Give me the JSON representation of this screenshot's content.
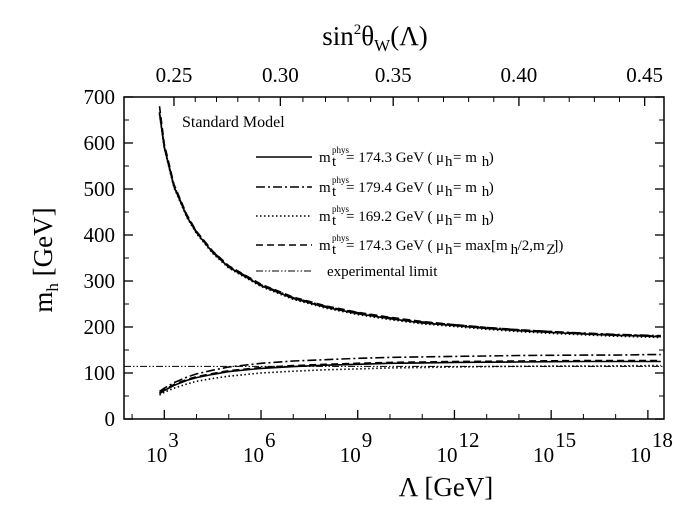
{
  "chart_data": {
    "type": "line",
    "title": "Standard Model",
    "xlabel": "Λ [GeV]",
    "ylabel": "m_h [GeV]",
    "top_xlabel": "sin²θ_W(Λ)",
    "xscale": "log10",
    "xlim_log10": [
      1.75,
      18.5
    ],
    "ylim": [
      0,
      700
    ],
    "x_ticks_log10": [
      3,
      6,
      9,
      12,
      15,
      18
    ],
    "x_tick_labels": [
      {
        "base": "10",
        "exp": "3"
      },
      {
        "base": "10",
        "exp": "6"
      },
      {
        "base": "10",
        "exp": "9"
      },
      {
        "base": "10",
        "exp": "12"
      },
      {
        "base": "10",
        "exp": "15"
      },
      {
        "base": "10",
        "exp": "18"
      }
    ],
    "y_ticks": [
      0,
      100,
      200,
      300,
      400,
      500,
      600,
      700
    ],
    "y_tick_labels": [
      "0",
      "100",
      "200",
      "300",
      "400",
      "500",
      "600",
      "700"
    ],
    "top_ticks": [
      {
        "label": "0.25",
        "log10_lambda": 3.3
      },
      {
        "label": "0.30",
        "log10_lambda": 6.6
      },
      {
        "label": "0.35",
        "log10_lambda": 10.1
      },
      {
        "label": "0.40",
        "log10_lambda": 14.0
      },
      {
        "label": "0.45",
        "log10_lambda": 17.9
      }
    ],
    "series": [
      {
        "name": "m_t^phys = 174.3 GeV (μ_h = m_h)",
        "legend": {
          "label": "= 174.3 GeV (",
          "cond": " = m",
          "close": ")",
          "max": ""
        },
        "dash": "solid",
        "upper": {
          "log10_lambda": [
            2.85,
            3,
            3.3,
            3.7,
            4,
            4.5,
            5,
            6,
            7,
            8,
            9,
            10,
            11,
            12,
            13,
            14,
            15,
            16,
            17,
            18,
            18.4
          ],
          "m_h": [
            665,
            590,
            505,
            440,
            405,
            362,
            330,
            290,
            262,
            243,
            229,
            218,
            209,
            203,
            197,
            192,
            188,
            185,
            182,
            180,
            179
          ]
        },
        "lower": {
          "log10_lambda": [
            2.85,
            3,
            3.3,
            3.7,
            4,
            4.5,
            5,
            6,
            7,
            8,
            9,
            10,
            11,
            12,
            13,
            14,
            15,
            16,
            17,
            18,
            18.4
          ],
          "m_h": [
            55,
            62,
            73,
            84,
            90,
            97,
            103,
            110,
            114,
            117,
            119,
            121,
            122,
            123,
            123.5,
            124,
            124.5,
            125,
            125,
            125,
            125
          ]
        }
      },
      {
        "name": "m_t^phys = 179.4 GeV (μ_h = m_h)",
        "legend": {
          "label": "= 179.4 GeV (",
          "cond": " = m",
          "close": ")",
          "max": ""
        },
        "dash": "dashdot",
        "upper": {
          "log10_lambda": [
            2.85,
            3,
            3.3,
            3.7,
            4,
            4.5,
            5,
            6,
            7,
            8,
            9,
            10,
            11,
            12,
            13,
            14,
            15,
            16,
            17,
            18,
            18.4
          ],
          "m_h": [
            667,
            592,
            507,
            442,
            407,
            364,
            332,
            292,
            264,
            245,
            231,
            220,
            211,
            205,
            199,
            194,
            190,
            187,
            184,
            182,
            181
          ]
        },
        "lower": {
          "log10_lambda": [
            2.85,
            3,
            3.3,
            3.7,
            4,
            4.5,
            5,
            6,
            7,
            8,
            9,
            10,
            11,
            12,
            13,
            14,
            15,
            16,
            17,
            18,
            18.4
          ],
          "m_h": [
            60,
            67,
            79,
            91,
            98,
            106,
            113,
            121,
            126,
            129,
            132,
            134,
            135,
            136,
            137,
            138,
            138.5,
            139,
            139,
            140,
            140
          ]
        }
      },
      {
        "name": "m_t^phys = 169.2 GeV (μ_h = m_h)",
        "legend": {
          "label": "= 169.2 GeV (",
          "cond": " = m",
          "close": ")",
          "max": ""
        },
        "dash": "dotted",
        "upper": {
          "log10_lambda": [
            2.85,
            3,
            3.3,
            3.7,
            4,
            4.5,
            5,
            6,
            7,
            8,
            9,
            10,
            11,
            12,
            13,
            14,
            15,
            16,
            17,
            18,
            18.4
          ],
          "m_h": [
            663,
            588,
            503,
            438,
            403,
            360,
            328,
            288,
            260,
            241,
            227,
            216,
            207,
            201,
            195,
            190,
            186,
            183,
            180,
            178,
            177
          ]
        },
        "lower": {
          "log10_lambda": [
            2.85,
            3,
            3.3,
            3.7,
            4,
            4.5,
            5,
            6,
            7,
            8,
            9,
            10,
            11,
            12,
            13,
            14,
            15,
            16,
            17,
            18,
            18.4
          ],
          "m_h": [
            52,
            58,
            67,
            76,
            82,
            88,
            93,
            100,
            104,
            107,
            109,
            111,
            112,
            113,
            114,
            114.5,
            115,
            115,
            115.5,
            116,
            116
          ]
        }
      },
      {
        "name": "m_t^phys = 174.3 GeV (μ_h = max[m_h/2, m_Z])",
        "legend": {
          "label": "= 174.3 GeV (",
          "cond": " = max[m",
          "close": "])",
          "max": "/2,m"
        },
        "dash": "dashed",
        "upper": {
          "log10_lambda": [
            2.85,
            3,
            3.3,
            3.7,
            4,
            4.5,
            5,
            6,
            7,
            8,
            9,
            10,
            11,
            12,
            13,
            14,
            15,
            16,
            17,
            18,
            18.4
          ],
          "m_h": [
            680,
            598,
            510,
            444,
            408,
            365,
            333,
            293,
            265,
            246,
            232,
            221,
            212,
            205,
            199,
            194,
            190,
            186,
            183,
            181,
            180
          ]
        },
        "lower": {
          "log10_lambda": [
            2.85,
            3,
            3.3,
            3.7,
            4,
            4.5,
            5,
            6,
            7,
            8,
            9,
            10,
            11,
            12,
            13,
            14,
            15,
            16,
            17,
            18,
            18.4
          ],
          "m_h": [
            57,
            64,
            75,
            86,
            92,
            99,
            105,
            112,
            116,
            119,
            121,
            123,
            124,
            125,
            125.5,
            126,
            126.5,
            127,
            127,
            127,
            127
          ]
        }
      },
      {
        "name": "experimental limit",
        "legend": {
          "label": "experimental limit"
        },
        "dash": "dashdotdot",
        "value": 114.4
      }
    ],
    "legend_title": "Standard Model",
    "legend_sup": "phys",
    "legend_sym_m": "m",
    "legend_sym_t": "t",
    "legend_mu": "μ",
    "legend_h": "h",
    "legend_z": "Z"
  }
}
